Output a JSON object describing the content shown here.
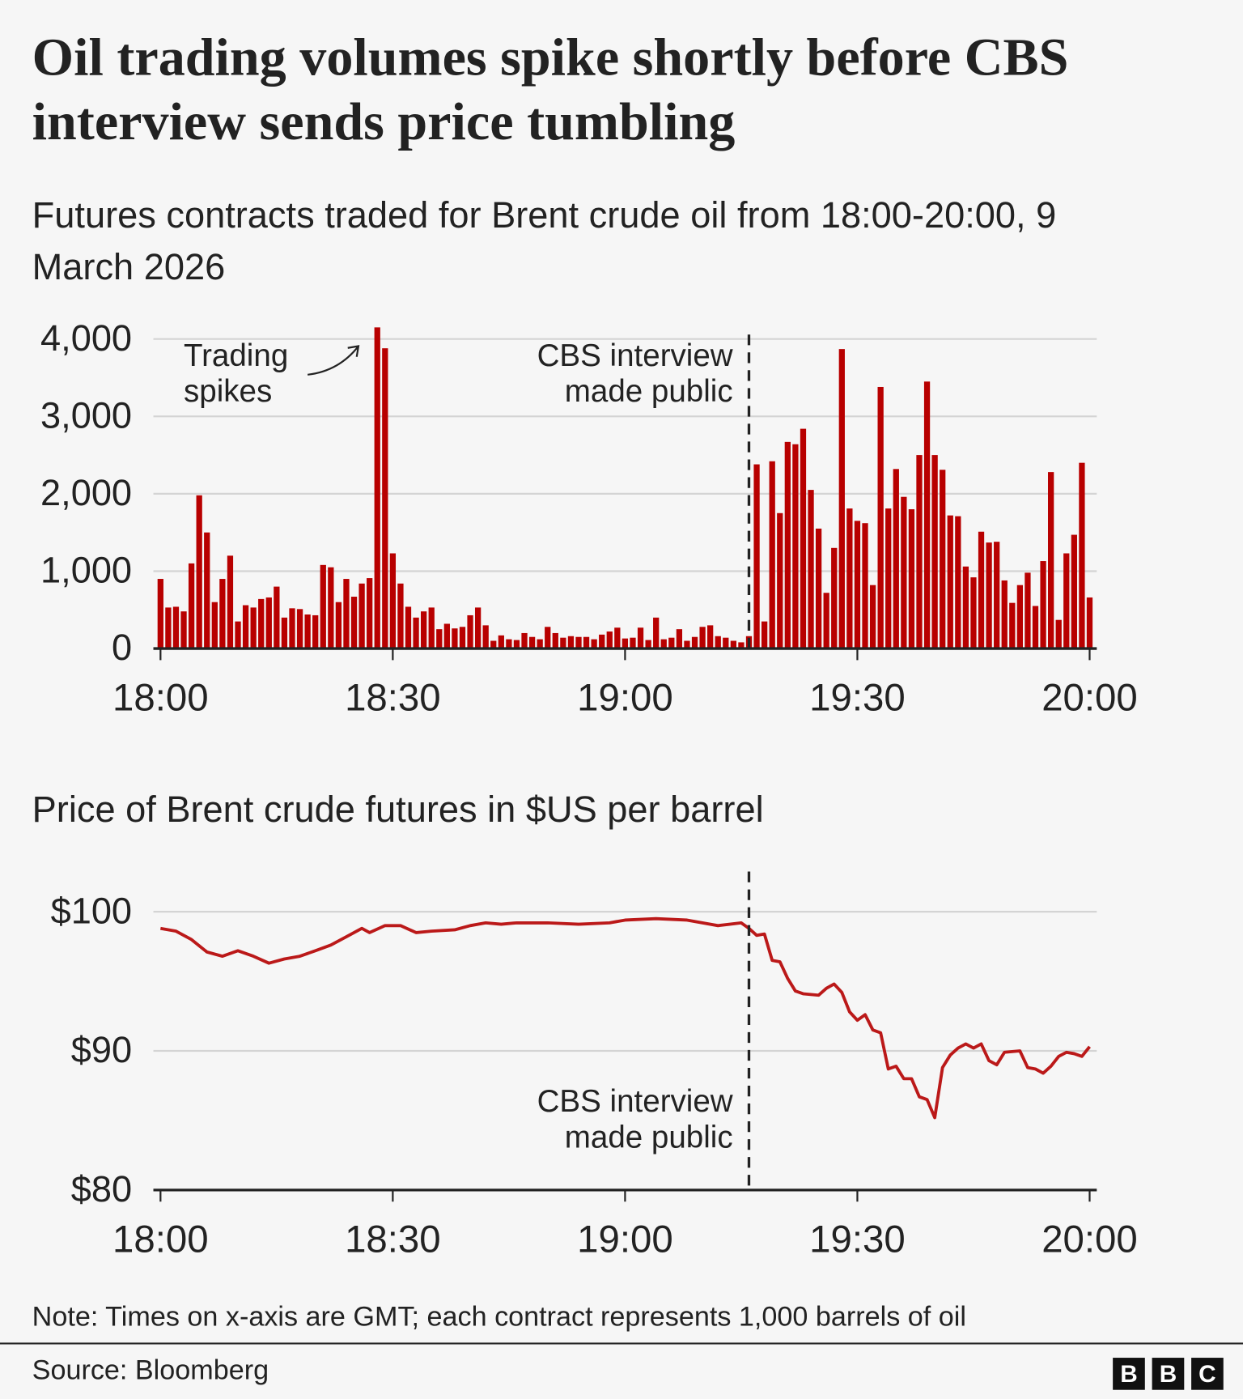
{
  "title": "Oil trading volumes spike shortly before CBS interview sends price tumbling",
  "note": "Note: Times on x-axis are GMT; each contract represents 1,000 barrels of oil",
  "source": "Source: Bloomberg",
  "logo": [
    "B",
    "B",
    "C"
  ],
  "chart_data": [
    {
      "type": "bar",
      "title": "Futures contracts traded for Brent crude oil from 18:00-20:00, 9 March 2026",
      "color": "#b80000",
      "grid": true,
      "xlim": [
        "18:00",
        "20:00"
      ],
      "xticks": [
        "18:00",
        "18:30",
        "19:00",
        "19:30",
        "20:00"
      ],
      "ylim": [
        0,
        4000
      ],
      "yticks": [
        0,
        {
          "value": 1000,
          "label": "1,000"
        },
        {
          "value": 2000,
          "label": "2,000"
        },
        {
          "value": 3000,
          "label": "3,000"
        },
        {
          "value": 4000,
          "label": "4,000"
        }
      ],
      "annotations": [
        {
          "lines": [
            "Trading",
            "spikes"
          ]
        },
        {
          "x": "19:16",
          "lines": [
            "CBS interview",
            "made public"
          ]
        }
      ],
      "x": [
        "18:00",
        "18:01",
        "18:02",
        "18:03",
        "18:04",
        "18:05",
        "18:06",
        "18:07",
        "18:08",
        "18:09",
        "18:10",
        "18:11",
        "18:12",
        "18:13",
        "18:14",
        "18:15",
        "18:16",
        "18:17",
        "18:18",
        "18:19",
        "18:20",
        "18:21",
        "18:22",
        "18:23",
        "18:24",
        "18:25",
        "18:26",
        "18:27",
        "18:28",
        "18:29",
        "18:30",
        "18:31",
        "18:32",
        "18:33",
        "18:34",
        "18:35",
        "18:36",
        "18:37",
        "18:38",
        "18:39",
        "18:40",
        "18:41",
        "18:42",
        "18:43",
        "18:44",
        "18:45",
        "18:46",
        "18:47",
        "18:48",
        "18:49",
        "18:50",
        "18:51",
        "18:52",
        "18:53",
        "18:54",
        "18:55",
        "18:56",
        "18:57",
        "18:58",
        "18:59",
        "19:00",
        "19:01",
        "19:02",
        "19:03",
        "19:04",
        "19:05",
        "19:06",
        "19:07",
        "19:08",
        "19:09",
        "19:10",
        "19:11",
        "19:12",
        "19:13",
        "19:14",
        "19:15",
        "19:16",
        "19:17",
        "19:18",
        "19:19",
        "19:20",
        "19:21",
        "19:22",
        "19:23",
        "19:24",
        "19:25",
        "19:26",
        "19:27",
        "19:28",
        "19:29",
        "19:30",
        "19:31",
        "19:32",
        "19:33",
        "19:34",
        "19:35",
        "19:36",
        "19:37",
        "19:38",
        "19:39",
        "19:40",
        "19:41",
        "19:42",
        "19:43",
        "19:44",
        "19:45",
        "19:46",
        "19:47",
        "19:48",
        "19:49",
        "19:50",
        "19:51",
        "19:52",
        "19:53",
        "19:54",
        "19:55",
        "19:56",
        "19:57",
        "19:58",
        "19:59",
        "20:00"
      ],
      "values": [
        900,
        530,
        540,
        480,
        1100,
        1980,
        1500,
        600,
        900,
        1200,
        350,
        560,
        530,
        640,
        660,
        800,
        400,
        520,
        510,
        440,
        430,
        1080,
        1050,
        600,
        900,
        670,
        840,
        910,
        4150,
        3880,
        1230,
        840,
        540,
        400,
        480,
        530,
        250,
        320,
        260,
        280,
        430,
        530,
        300,
        100,
        170,
        120,
        110,
        200,
        150,
        120,
        280,
        200,
        140,
        160,
        150,
        150,
        120,
        180,
        220,
        270,
        130,
        140,
        270,
        110,
        400,
        120,
        140,
        250,
        100,
        150,
        280,
        300,
        160,
        140,
        100,
        80,
        160,
        2380,
        350,
        2420,
        1750,
        2670,
        2640,
        2840,
        2050,
        1550,
        720,
        1300,
        3870,
        1810,
        1650,
        1620,
        820,
        3380,
        1810,
        2320,
        1960,
        1800,
        2500,
        3450,
        2500,
        2310,
        1720,
        1710,
        1060,
        920,
        1510,
        1370,
        1380,
        880,
        590,
        820,
        980,
        550,
        1130,
        2280,
        370,
        1230,
        1470,
        2400,
        660
      ]
    },
    {
      "type": "line",
      "title": "Price of Brent crude futures in $US per barrel",
      "color": "#bb1919",
      "grid": true,
      "xlim": [
        "18:00",
        "20:00"
      ],
      "xticks": [
        "18:00",
        "18:30",
        "19:00",
        "19:30",
        "20:00"
      ],
      "ylim": [
        80,
        100
      ],
      "yticks": [
        {
          "value": 80,
          "label": "$80"
        },
        {
          "value": 90,
          "label": "$90"
        },
        {
          "value": 100,
          "label": "$100"
        }
      ],
      "annotations": [
        {
          "x": "19:16",
          "lines": [
            "CBS interview",
            "made public"
          ]
        }
      ],
      "x": [
        "18:00",
        "18:02",
        "18:04",
        "18:06",
        "18:08",
        "18:10",
        "18:12",
        "18:14",
        "18:16",
        "18:18",
        "18:20",
        "18:22",
        "18:24",
        "18:26",
        "18:27",
        "18:29",
        "18:31",
        "18:33",
        "18:35",
        "18:38",
        "18:40",
        "18:42",
        "18:44",
        "18:46",
        "18:50",
        "18:54",
        "18:58",
        "19:00",
        "19:04",
        "19:08",
        "19:12",
        "19:15",
        "19:16",
        "19:17",
        "19:18",
        "19:19",
        "19:20",
        "19:21",
        "19:22",
        "19:23",
        "19:25",
        "19:26",
        "19:27",
        "19:28",
        "19:29",
        "19:30",
        "19:31",
        "19:32",
        "19:33",
        "19:34",
        "19:35",
        "19:36",
        "19:37",
        "19:38",
        "19:39",
        "19:40",
        "19:41",
        "19:42",
        "19:43",
        "19:44",
        "19:45",
        "19:46",
        "19:47",
        "19:48",
        "19:49",
        "19:51",
        "19:52",
        "19:53",
        "19:54",
        "19:55",
        "19:56",
        "19:57",
        "19:58",
        "19:59",
        "20:00"
      ],
      "values": [
        98.8,
        98.6,
        98.0,
        97.1,
        96.8,
        97.2,
        96.8,
        96.3,
        96.6,
        96.8,
        97.2,
        97.6,
        98.2,
        98.8,
        98.5,
        99.0,
        99.0,
        98.5,
        98.6,
        98.7,
        99.0,
        99.2,
        99.1,
        99.2,
        99.2,
        99.1,
        99.2,
        99.4,
        99.5,
        99.4,
        99.0,
        99.2,
        98.8,
        98.3,
        98.4,
        96.5,
        96.4,
        95.2,
        94.3,
        94.1,
        94.0,
        94.5,
        94.8,
        94.2,
        92.8,
        92.2,
        92.6,
        91.5,
        91.3,
        88.7,
        88.9,
        88.0,
        88.0,
        86.7,
        86.5,
        85.2,
        88.8,
        89.7,
        90.2,
        90.5,
        90.2,
        90.5,
        89.3,
        89.0,
        89.9,
        90.0,
        88.8,
        88.7,
        88.4,
        88.9,
        89.6,
        89.9,
        89.8,
        89.6,
        90.3
      ]
    }
  ]
}
